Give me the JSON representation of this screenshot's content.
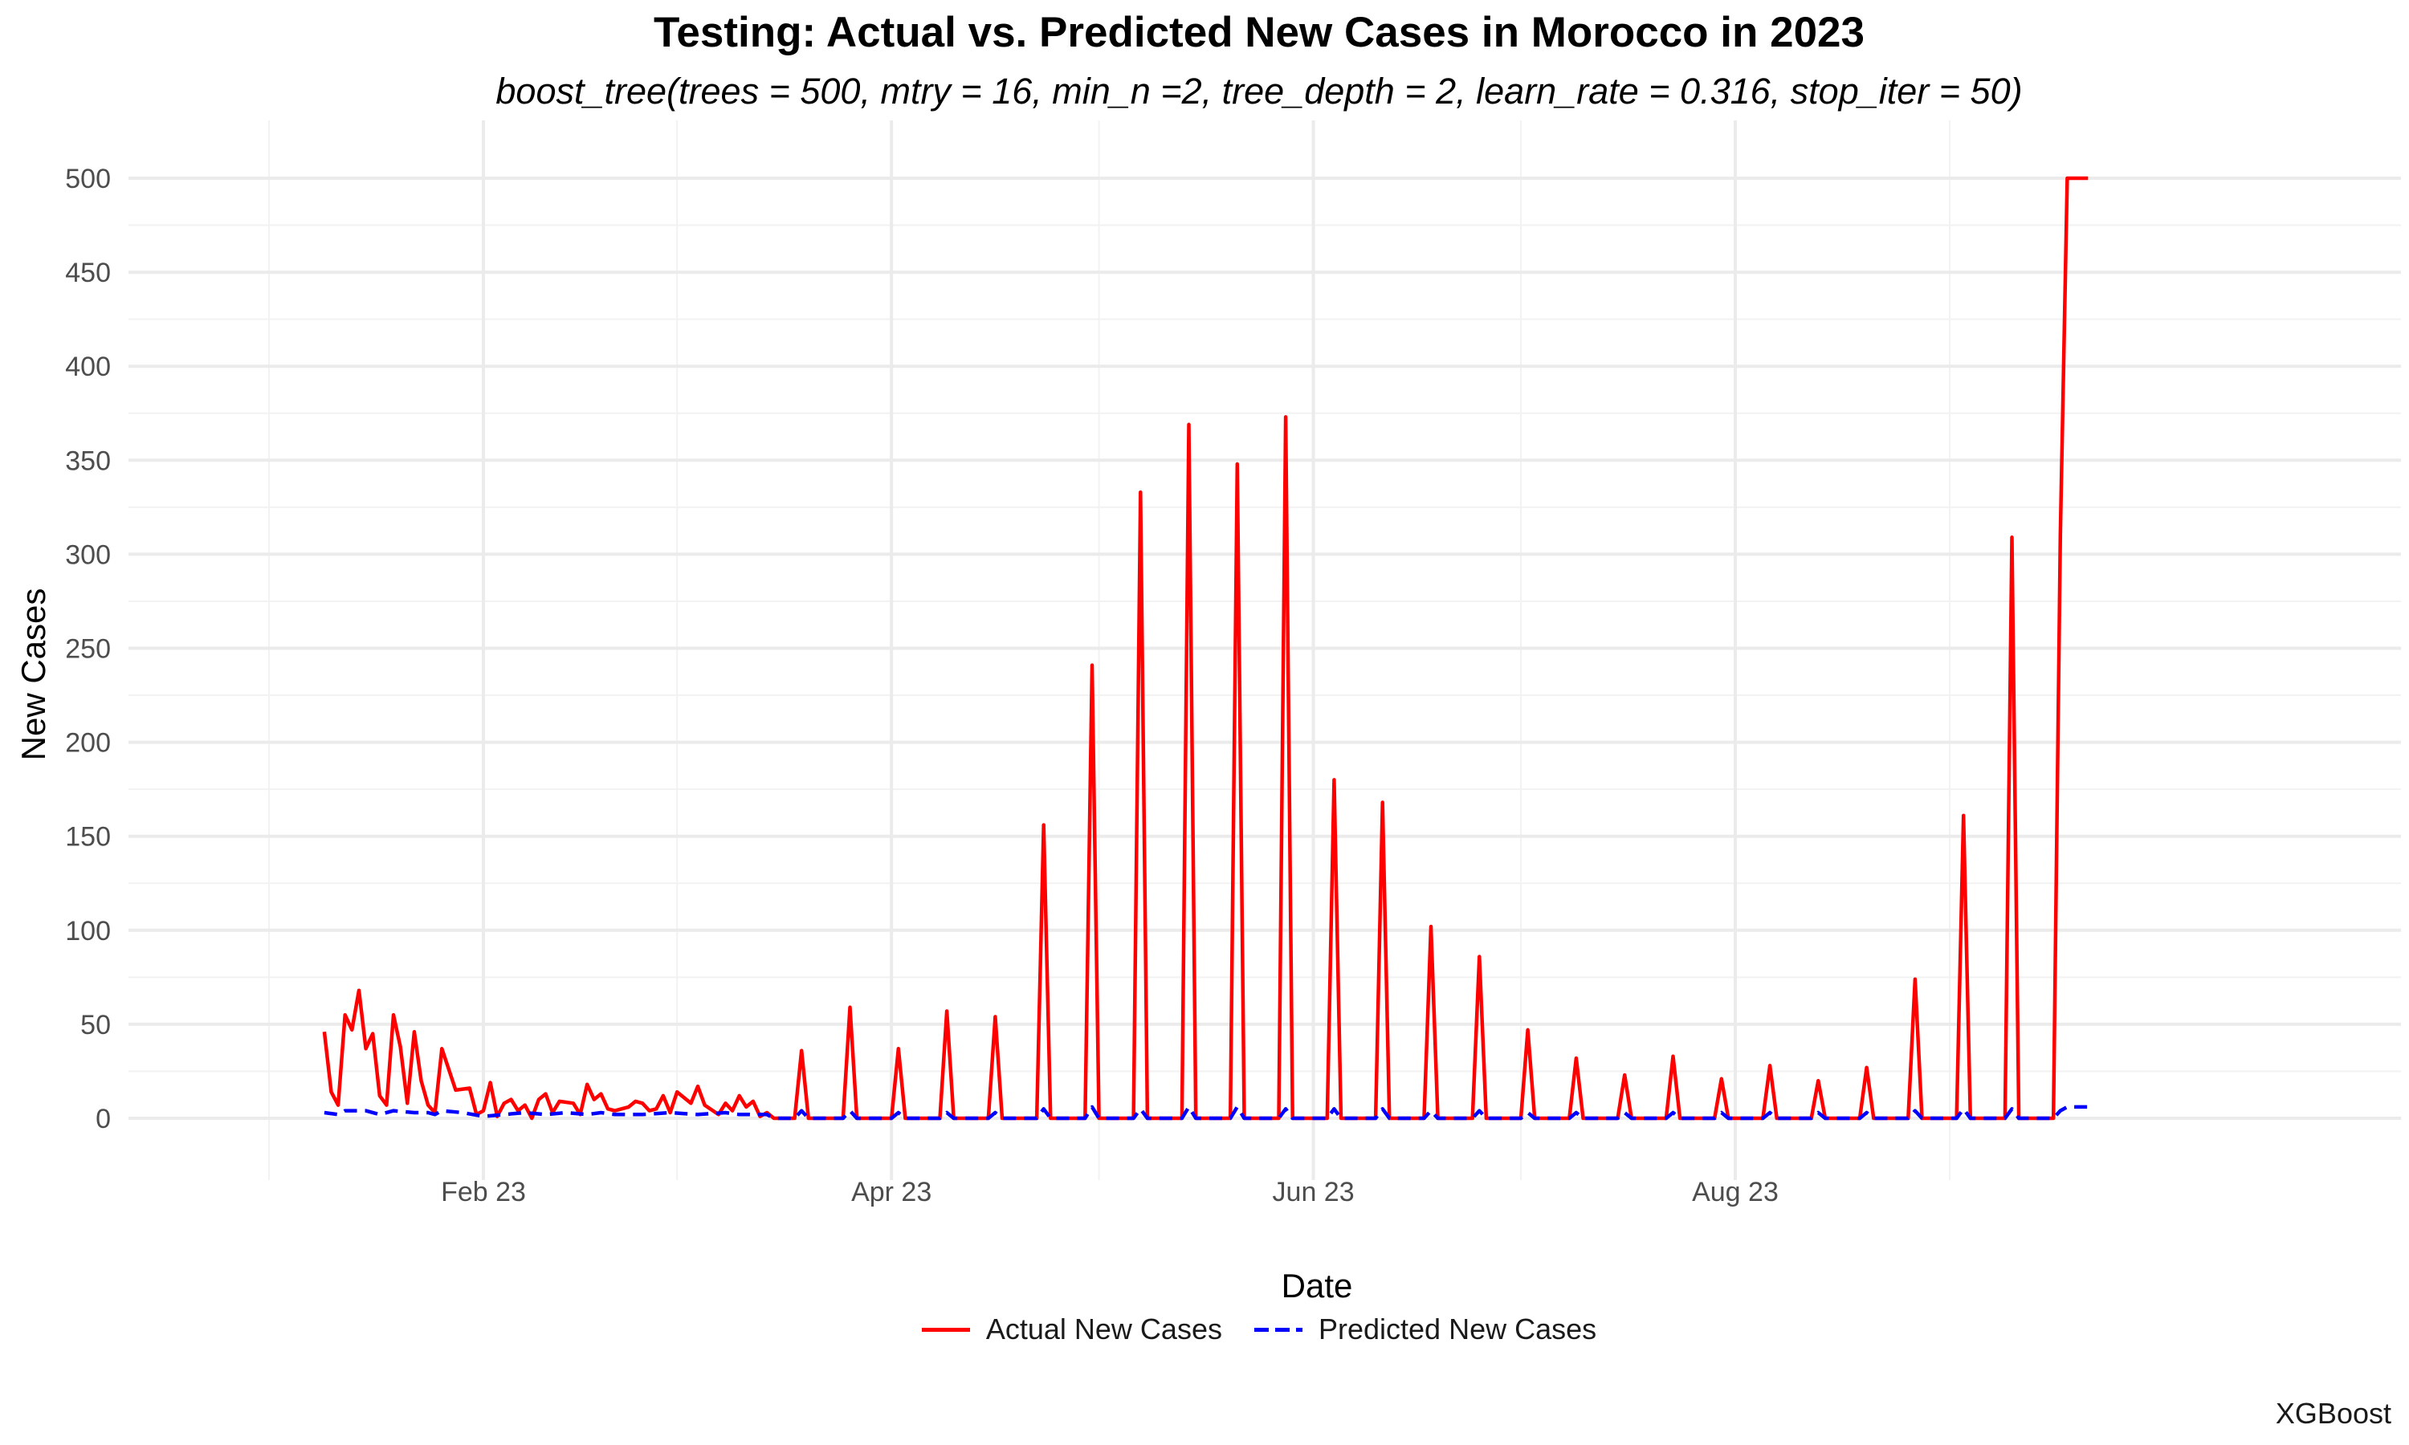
{
  "chart_data": {
    "type": "line",
    "title": "Testing: Actual vs. Predicted New Cases in Morocco in 2023",
    "subtitle": "boost_tree(trees = 500, mtry = 16, min_n =2, tree_depth = 2, learn_rate = 0.316, stop_iter = 50)",
    "xlabel": "Date",
    "ylabel": "New Cases",
    "caption": "XGBoost",
    "x_ticks": [
      "Feb 23",
      "Apr 23",
      "Jun 23",
      "Aug 23"
    ],
    "y_ticks": [
      0,
      50,
      100,
      150,
      200,
      250,
      300,
      350,
      400,
      450,
      500
    ],
    "ylim": [
      -25,
      510
    ],
    "xlim": [
      "2023-01-01",
      "2023-09-30"
    ],
    "grid": true,
    "legend_position": "bottom",
    "series": [
      {
        "name": "Actual New Cases",
        "color": "#ff0000",
        "dash": "solid",
        "points": [
          [
            "2023-01-09",
            46
          ],
          [
            "2023-01-10",
            14
          ],
          [
            "2023-01-11",
            7
          ],
          [
            "2023-01-12",
            55
          ],
          [
            "2023-01-13",
            47
          ],
          [
            "2023-01-14",
            68
          ],
          [
            "2023-01-15",
            37
          ],
          [
            "2023-01-16",
            45
          ],
          [
            "2023-01-17",
            12
          ],
          [
            "2023-01-18",
            7
          ],
          [
            "2023-01-19",
            55
          ],
          [
            "2023-01-20",
            38
          ],
          [
            "2023-01-21",
            8
          ],
          [
            "2023-01-22",
            46
          ],
          [
            "2023-01-23",
            20
          ],
          [
            "2023-01-24",
            7
          ],
          [
            "2023-01-25",
            3
          ],
          [
            "2023-01-26",
            37
          ],
          [
            "2023-01-28",
            15
          ],
          [
            "2023-01-30",
            16
          ],
          [
            "2023-01-31",
            2
          ],
          [
            "2023-02-01",
            4
          ],
          [
            "2023-02-02",
            19
          ],
          [
            "2023-02-03",
            1
          ],
          [
            "2023-02-04",
            8
          ],
          [
            "2023-02-05",
            10
          ],
          [
            "2023-02-06",
            4
          ],
          [
            "2023-02-07",
            7
          ],
          [
            "2023-02-08",
            0
          ],
          [
            "2023-02-09",
            10
          ],
          [
            "2023-02-10",
            13
          ],
          [
            "2023-02-11",
            3
          ],
          [
            "2023-02-12",
            9
          ],
          [
            "2023-02-14",
            8
          ],
          [
            "2023-02-15",
            2
          ],
          [
            "2023-02-16",
            18
          ],
          [
            "2023-02-17",
            10
          ],
          [
            "2023-02-18",
            13
          ],
          [
            "2023-02-19",
            5
          ],
          [
            "2023-02-20",
            4
          ],
          [
            "2023-02-22",
            6
          ],
          [
            "2023-02-23",
            9
          ],
          [
            "2023-02-24",
            8
          ],
          [
            "2023-02-25",
            4
          ],
          [
            "2023-02-26",
            5
          ],
          [
            "2023-02-27",
            12
          ],
          [
            "2023-02-28",
            3
          ],
          [
            "2023-03-01",
            14
          ],
          [
            "2023-03-03",
            8
          ],
          [
            "2023-03-04",
            17
          ],
          [
            "2023-03-05",
            7
          ],
          [
            "2023-03-07",
            2
          ],
          [
            "2023-03-08",
            8
          ],
          [
            "2023-03-09",
            4
          ],
          [
            "2023-03-10",
            12
          ],
          [
            "2023-03-11",
            6
          ],
          [
            "2023-03-12",
            9
          ],
          [
            "2023-03-13",
            1
          ],
          [
            "2023-03-14",
            3
          ],
          [
            "2023-03-15",
            0
          ],
          [
            "2023-03-18",
            0
          ],
          [
            "2023-03-19",
            36
          ],
          [
            "2023-03-20",
            0
          ],
          [
            "2023-03-25",
            0
          ],
          [
            "2023-03-26",
            59
          ],
          [
            "2023-03-27",
            0
          ],
          [
            "2023-04-01",
            0
          ],
          [
            "2023-04-02",
            37
          ],
          [
            "2023-04-03",
            0
          ],
          [
            "2023-04-08",
            0
          ],
          [
            "2023-04-09",
            57
          ],
          [
            "2023-04-10",
            0
          ],
          [
            "2023-04-15",
            0
          ],
          [
            "2023-04-16",
            54
          ],
          [
            "2023-04-17",
            0
          ],
          [
            "2023-04-22",
            0
          ],
          [
            "2023-04-23",
            156
          ],
          [
            "2023-04-24",
            0
          ],
          [
            "2023-04-29",
            0
          ],
          [
            "2023-04-30",
            241
          ],
          [
            "2023-05-01",
            0
          ],
          [
            "2023-05-06",
            0
          ],
          [
            "2023-05-07",
            333
          ],
          [
            "2023-05-08",
            0
          ],
          [
            "2023-05-13",
            0
          ],
          [
            "2023-05-14",
            369
          ],
          [
            "2023-05-15",
            0
          ],
          [
            "2023-05-20",
            0
          ],
          [
            "2023-05-21",
            348
          ],
          [
            "2023-05-22",
            0
          ],
          [
            "2023-05-27",
            0
          ],
          [
            "2023-05-28",
            373
          ],
          [
            "2023-05-29",
            0
          ],
          [
            "2023-06-03",
            0
          ],
          [
            "2023-06-04",
            180
          ],
          [
            "2023-06-05",
            0
          ],
          [
            "2023-06-10",
            0
          ],
          [
            "2023-06-11",
            168
          ],
          [
            "2023-06-12",
            0
          ],
          [
            "2023-06-17",
            0
          ],
          [
            "2023-06-18",
            102
          ],
          [
            "2023-06-19",
            0
          ],
          [
            "2023-06-24",
            0
          ],
          [
            "2023-06-25",
            86
          ],
          [
            "2023-06-26",
            0
          ],
          [
            "2023-07-01",
            0
          ],
          [
            "2023-07-02",
            47
          ],
          [
            "2023-07-03",
            0
          ],
          [
            "2023-07-08",
            0
          ],
          [
            "2023-07-09",
            32
          ],
          [
            "2023-07-10",
            0
          ],
          [
            "2023-07-15",
            0
          ],
          [
            "2023-07-16",
            23
          ],
          [
            "2023-07-17",
            0
          ],
          [
            "2023-07-22",
            0
          ],
          [
            "2023-07-23",
            33
          ],
          [
            "2023-07-24",
            0
          ],
          [
            "2023-07-29",
            0
          ],
          [
            "2023-07-30",
            21
          ],
          [
            "2023-07-31",
            0
          ],
          [
            "2023-08-05",
            0
          ],
          [
            "2023-08-06",
            28
          ],
          [
            "2023-08-07",
            0
          ],
          [
            "2023-08-12",
            0
          ],
          [
            "2023-08-13",
            20
          ],
          [
            "2023-08-14",
            0
          ],
          [
            "2023-08-19",
            0
          ],
          [
            "2023-08-20",
            27
          ],
          [
            "2023-08-21",
            0
          ],
          [
            "2023-08-26",
            0
          ],
          [
            "2023-08-27",
            74
          ],
          [
            "2023-08-28",
            0
          ],
          [
            "2023-09-02",
            0
          ],
          [
            "2023-09-03",
            161
          ],
          [
            "2023-09-04",
            0
          ],
          [
            "2023-09-09",
            0
          ],
          [
            "2023-09-10",
            309
          ],
          [
            "2023-09-11",
            0
          ],
          [
            "2023-09-16",
            0
          ],
          [
            "2023-09-17",
            310
          ],
          [
            "2023-09-18",
            500
          ],
          [
            "2023-09-21",
            500
          ]
        ]
      },
      {
        "name": "Predicted New Cases",
        "color": "#0000ff",
        "dash": "dashed",
        "points": [
          [
            "2023-01-09",
            3
          ],
          [
            "2023-01-11",
            2
          ],
          [
            "2023-01-12",
            4
          ],
          [
            "2023-01-15",
            4
          ],
          [
            "2023-01-17",
            2
          ],
          [
            "2023-01-19",
            4
          ],
          [
            "2023-01-22",
            3
          ],
          [
            "2023-01-24",
            3
          ],
          [
            "2023-01-25",
            2
          ],
          [
            "2023-01-26",
            4
          ],
          [
            "2023-01-29",
            3
          ],
          [
            "2023-02-01",
            1
          ],
          [
            "2023-02-04",
            2
          ],
          [
            "2023-02-07",
            3
          ],
          [
            "2023-02-10",
            2
          ],
          [
            "2023-02-13",
            3
          ],
          [
            "2023-02-16",
            2
          ],
          [
            "2023-02-18",
            3
          ],
          [
            "2023-02-20",
            2
          ],
          [
            "2023-02-24",
            2
          ],
          [
            "2023-02-28",
            3
          ],
          [
            "2023-03-04",
            2
          ],
          [
            "2023-03-08",
            3
          ],
          [
            "2023-03-10",
            2
          ],
          [
            "2023-03-14",
            2
          ],
          [
            "2023-03-15",
            0
          ],
          [
            "2023-03-18",
            0
          ],
          [
            "2023-03-19",
            4
          ],
          [
            "2023-03-20",
            0
          ],
          [
            "2023-03-25",
            0
          ],
          [
            "2023-03-26",
            4
          ],
          [
            "2023-03-27",
            0
          ],
          [
            "2023-04-01",
            0
          ],
          [
            "2023-04-02",
            3
          ],
          [
            "2023-04-03",
            0
          ],
          [
            "2023-04-08",
            0
          ],
          [
            "2023-04-09",
            3
          ],
          [
            "2023-04-10",
            0
          ],
          [
            "2023-04-15",
            0
          ],
          [
            "2023-04-16",
            3
          ],
          [
            "2023-04-17",
            0
          ],
          [
            "2023-04-22",
            0
          ],
          [
            "2023-04-23",
            5
          ],
          [
            "2023-04-24",
            0
          ],
          [
            "2023-04-29",
            0
          ],
          [
            "2023-04-30",
            6
          ],
          [
            "2023-05-01",
            0
          ],
          [
            "2023-05-06",
            0
          ],
          [
            "2023-05-07",
            5
          ],
          [
            "2023-05-08",
            0
          ],
          [
            "2023-05-13",
            0
          ],
          [
            "2023-05-14",
            6
          ],
          [
            "2023-05-15",
            0
          ],
          [
            "2023-05-20",
            0
          ],
          [
            "2023-05-21",
            6
          ],
          [
            "2023-05-22",
            0
          ],
          [
            "2023-05-27",
            0
          ],
          [
            "2023-05-28",
            5
          ],
          [
            "2023-05-29",
            0
          ],
          [
            "2023-06-03",
            0
          ],
          [
            "2023-06-04",
            5
          ],
          [
            "2023-06-05",
            0
          ],
          [
            "2023-06-10",
            0
          ],
          [
            "2023-06-11",
            5
          ],
          [
            "2023-06-12",
            0
          ],
          [
            "2023-06-17",
            0
          ],
          [
            "2023-06-18",
            4
          ],
          [
            "2023-06-19",
            0
          ],
          [
            "2023-06-24",
            0
          ],
          [
            "2023-06-25",
            4
          ],
          [
            "2023-06-26",
            0
          ],
          [
            "2023-07-01",
            0
          ],
          [
            "2023-07-02",
            3
          ],
          [
            "2023-07-03",
            0
          ],
          [
            "2023-07-08",
            0
          ],
          [
            "2023-07-09",
            3
          ],
          [
            "2023-07-10",
            0
          ],
          [
            "2023-07-15",
            0
          ],
          [
            "2023-07-16",
            3
          ],
          [
            "2023-07-17",
            0
          ],
          [
            "2023-07-22",
            0
          ],
          [
            "2023-07-23",
            3
          ],
          [
            "2023-07-24",
            0
          ],
          [
            "2023-07-29",
            0
          ],
          [
            "2023-07-30",
            3
          ],
          [
            "2023-07-31",
            0
          ],
          [
            "2023-08-05",
            0
          ],
          [
            "2023-08-06",
            3
          ],
          [
            "2023-08-07",
            0
          ],
          [
            "2023-08-12",
            0
          ],
          [
            "2023-08-13",
            3
          ],
          [
            "2023-08-14",
            0
          ],
          [
            "2023-08-19",
            0
          ],
          [
            "2023-08-20",
            3
          ],
          [
            "2023-08-21",
            0
          ],
          [
            "2023-08-26",
            0
          ],
          [
            "2023-08-27",
            4
          ],
          [
            "2023-08-28",
            0
          ],
          [
            "2023-09-02",
            0
          ],
          [
            "2023-09-03",
            5
          ],
          [
            "2023-09-04",
            0
          ],
          [
            "2023-09-09",
            0
          ],
          [
            "2023-09-10",
            5
          ],
          [
            "2023-09-11",
            0
          ],
          [
            "2023-09-16",
            0
          ],
          [
            "2023-09-17",
            4
          ],
          [
            "2023-09-18",
            6
          ],
          [
            "2023-09-21",
            6
          ]
        ]
      }
    ]
  }
}
